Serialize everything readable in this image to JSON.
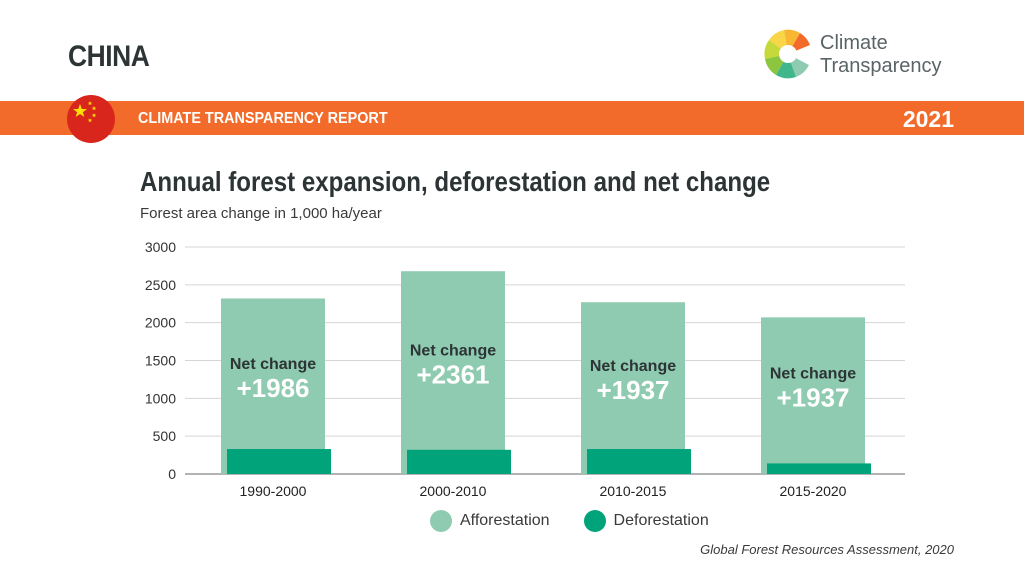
{
  "header": {
    "country": "CHINA",
    "report_title": "CLIMATE TRANSPARENCY REPORT",
    "year": "2021",
    "logo_line1": "Climate",
    "logo_line2": "Transparency"
  },
  "colors": {
    "banner": "#f26b2a",
    "afforestation": "#8fcbb0",
    "deforestation": "#00a37a",
    "flag": "#d8261c"
  },
  "source": "Global Forest Resources Assessment, 2020",
  "chart_data": {
    "type": "bar",
    "title": "Annual forest expansion, deforestation and net change",
    "subtitle": "Forest area change in 1,000 ha/year",
    "categories": [
      "1990-2000",
      "2000-2010",
      "2010-2015",
      "2015-2020"
    ],
    "series": [
      {
        "name": "Afforestation",
        "values": [
          2320,
          2680,
          2270,
          2070
        ]
      },
      {
        "name": "Deforestation",
        "values": [
          330,
          320,
          330,
          140
        ]
      }
    ],
    "net_change_label": "Net change",
    "net_change": [
      "+1986",
      "+2361",
      "+1937",
      "+1937"
    ],
    "y_ticks": [
      0,
      500,
      1000,
      1500,
      2000,
      2500,
      3000
    ],
    "ylim": [
      0,
      3000
    ],
    "grid": true,
    "legend_position": "bottom"
  }
}
